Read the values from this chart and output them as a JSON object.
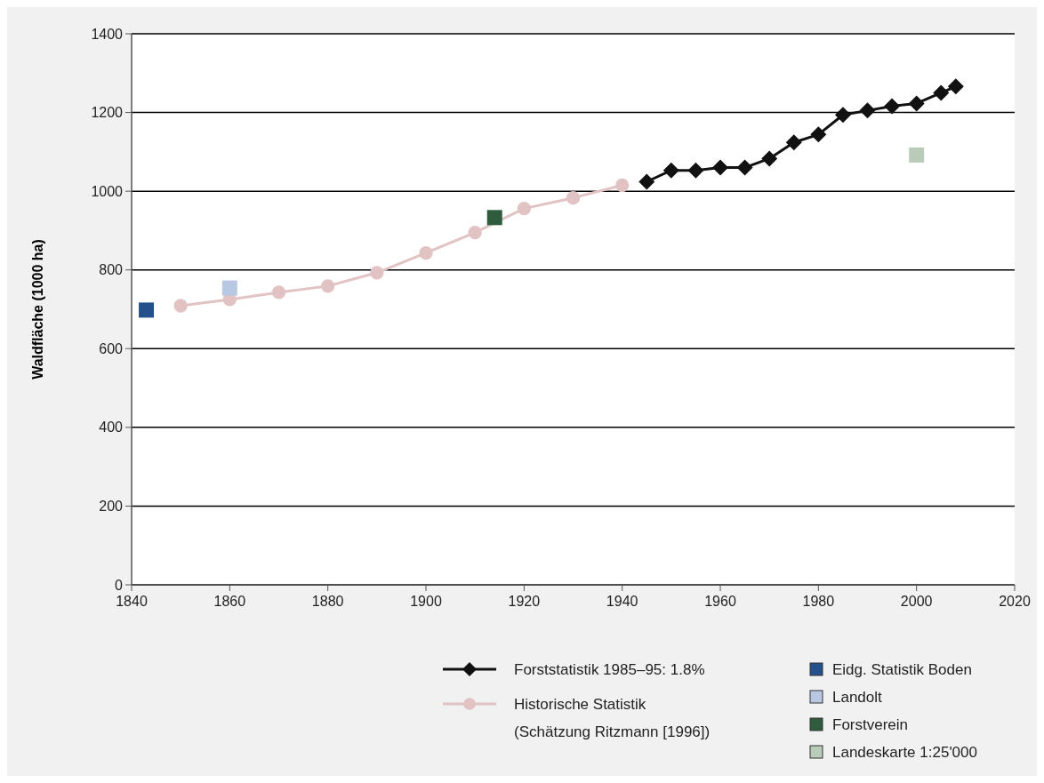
{
  "chart_data": {
    "type": "line",
    "ylabel": "Waldfläche (1000 ha)",
    "xlim": [
      1840,
      2020
    ],
    "xticks": [
      1840,
      1860,
      1880,
      1900,
      1920,
      1940,
      1960,
      1980,
      2000,
      2020
    ],
    "ylim": [
      0,
      1400
    ],
    "yticks": [
      0,
      200,
      400,
      600,
      800,
      1000,
      1200,
      1400
    ],
    "grid": "y",
    "legend": "bottom right",
    "series": [
      {
        "name": "Forststatistik 1985–95: 1.8%",
        "marker": "diamond",
        "color": "#111111",
        "x": [
          1945,
          1950,
          1955,
          1960,
          1965,
          1970,
          1975,
          1980,
          1985,
          1990,
          1995,
          2000,
          2005,
          2008
        ],
        "values": [
          1024,
          1053,
          1053,
          1060,
          1060,
          1083,
          1124,
          1144,
          1194,
          1205,
          1216,
          1223,
          1250,
          1266
        ]
      },
      {
        "name": "Historische Statistik\n(Schätzung Ritzmann [1996])",
        "marker": "circle",
        "color": "#e2c3c3",
        "x": [
          1850,
          1860,
          1870,
          1880,
          1890,
          1900,
          1910,
          1920,
          1930,
          1940
        ],
        "values": [
          709,
          725,
          743,
          759,
          793,
          843,
          895,
          956,
          983,
          1015
        ]
      },
      {
        "name": "Eidg. Statistik Boden",
        "type": "scatter",
        "marker": "square",
        "color": "#24508c",
        "x": [
          1843
        ],
        "values": [
          698
        ]
      },
      {
        "name": "Landolt",
        "type": "scatter",
        "marker": "square",
        "color": "#b9c8e2",
        "x": [
          1860
        ],
        "values": [
          754
        ]
      },
      {
        "name": "Forstverein",
        "type": "scatter",
        "marker": "square",
        "color": "#2f5c3c",
        "x": [
          1914
        ],
        "values": [
          933
        ]
      },
      {
        "name": "Landeskarte 1:25'000",
        "type": "scatter",
        "marker": "square",
        "color": "#b9cbb9",
        "x": [
          2000
        ],
        "values": [
          1092
        ]
      }
    ]
  }
}
